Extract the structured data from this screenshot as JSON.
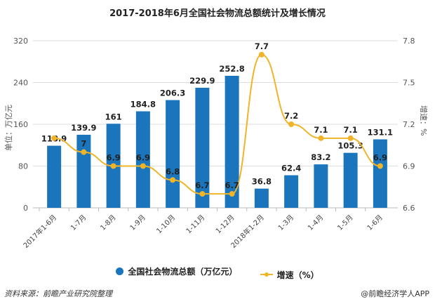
{
  "chart_data": {
    "type": "bar+line",
    "title": "2017-2018年6月全国社会物流总额统计及增长情况",
    "categories": [
      "2017年1-6月",
      "1-7月",
      "1-8月",
      "1-9月",
      "1-10月",
      "1-11月",
      "1-12月",
      "2018年1-2月",
      "1-3月",
      "1-4月",
      "1-5月",
      "1-6月"
    ],
    "series": [
      {
        "name": "全国社会物流总额（万亿元）",
        "type": "bar",
        "axis": "left",
        "color": "#1a75bc",
        "values": [
          118.9,
          139.9,
          161,
          184.8,
          206.3,
          229.9,
          252.8,
          36.8,
          62.4,
          83.2,
          105.3,
          131.1
        ],
        "labels": [
          "118.9",
          "139.9",
          "161",
          "184.8",
          "206.3",
          "229.9",
          "252.8",
          "36.8",
          "62.4",
          "83.2",
          "105.3",
          "131.1"
        ]
      },
      {
        "name": "增速（%）",
        "type": "line",
        "axis": "right",
        "color": "#f0b429",
        "values": [
          7.1,
          7,
          6.9,
          6.9,
          6.8,
          6.7,
          6.7,
          7.7,
          7.2,
          7.1,
          7.1,
          6.9
        ],
        "labels": [
          "",
          "7",
          "6.9",
          "6.9",
          "6.8",
          "6.7",
          "6.7",
          "7.7",
          "7.2",
          "7.1",
          "7.1",
          "6.9"
        ]
      }
    ],
    "ylabel": "单位：万亿元",
    "y2label": "增速：%",
    "ylim": [
      0,
      320
    ],
    "yticks": [
      "0",
      "80",
      "160",
      "240",
      "320"
    ],
    "y2lim": [
      6.6,
      7.8
    ],
    "y2ticks": [
      "6.6",
      "6.9",
      "7.2",
      "7.5",
      "7.8"
    ],
    "grid": true,
    "legend": "bottom"
  },
  "footer": {
    "source": "资料来源：前瞻产业研究院整理",
    "credit": "@前瞻经济学人APP"
  }
}
